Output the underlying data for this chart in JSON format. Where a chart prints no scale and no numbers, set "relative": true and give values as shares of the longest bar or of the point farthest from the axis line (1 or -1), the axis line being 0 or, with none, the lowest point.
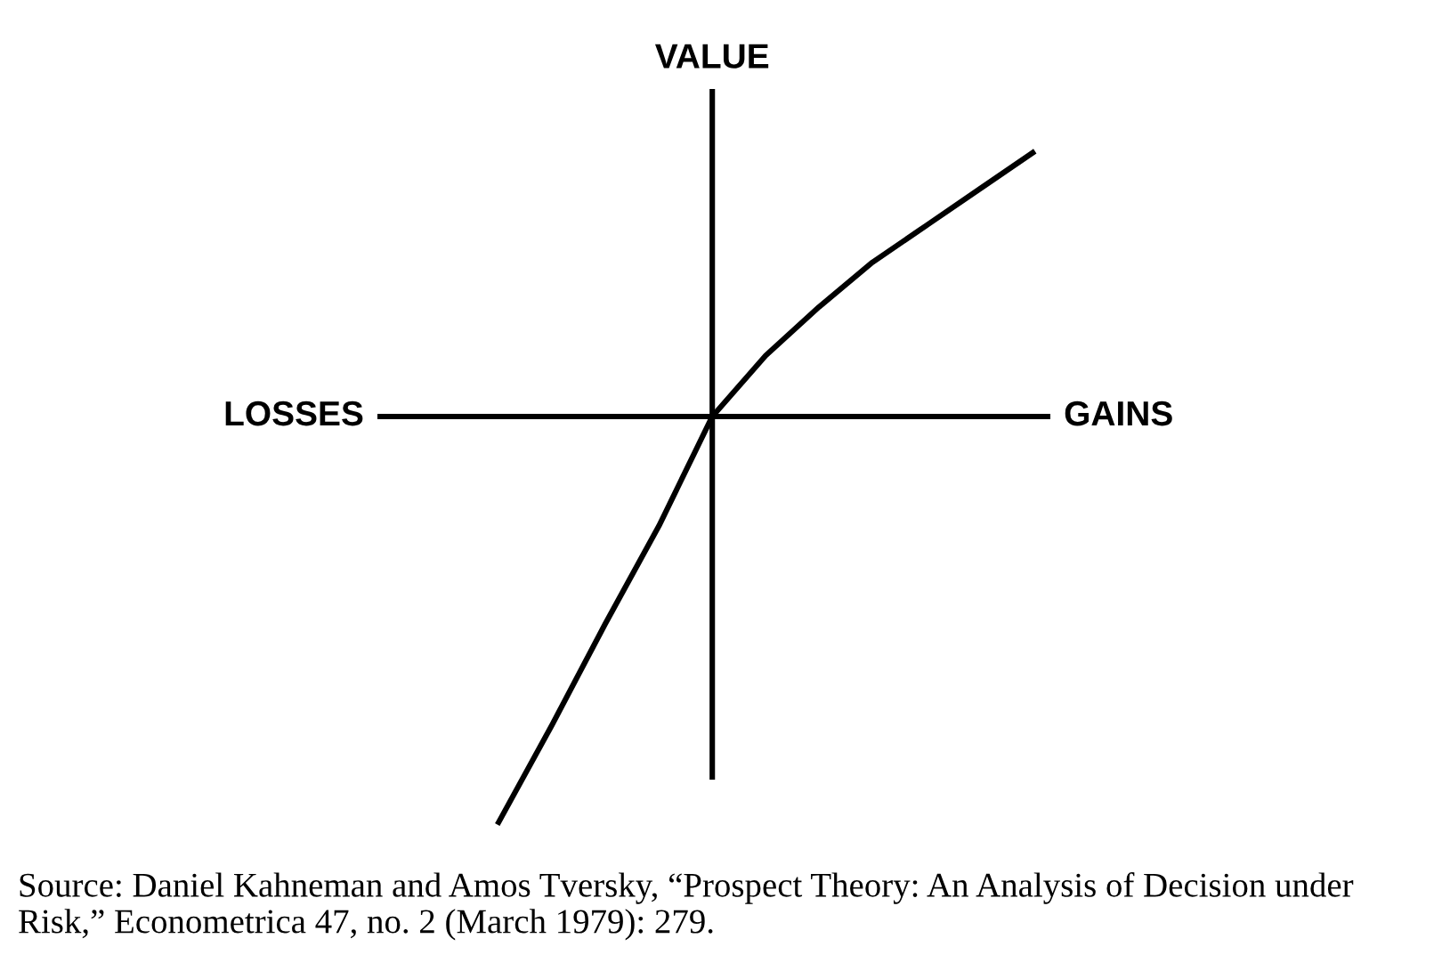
{
  "chart_data": {
    "type": "line",
    "relative": true,
    "ylabel": "VALUE",
    "xlabel": "GAINS",
    "categories": [
      null,
      null,
      null,
      null,
      null,
      null,
      null,
      null,
      null,
      null,
      null
    ],
    "series": [
      {
        "color": "#000000",
        "values": [
          -1,
          -0.76,
          -0.51,
          -0.27,
          0,
          0.15,
          0.27,
          0.38,
          0.47,
          0.56,
          0.65
        ]
      }
    ],
    "annotations": [
      "LOSSES",
      "Source: Daniel Kahneman and Amos Tversky, “Prospect Theory: An Analysis of Decision under Risk,” Econometrica 47, no. 2 (March 1979): 279."
    ],
    "marker": "none",
    "line_style": "solid",
    "grid": false,
    "legend": false
  }
}
